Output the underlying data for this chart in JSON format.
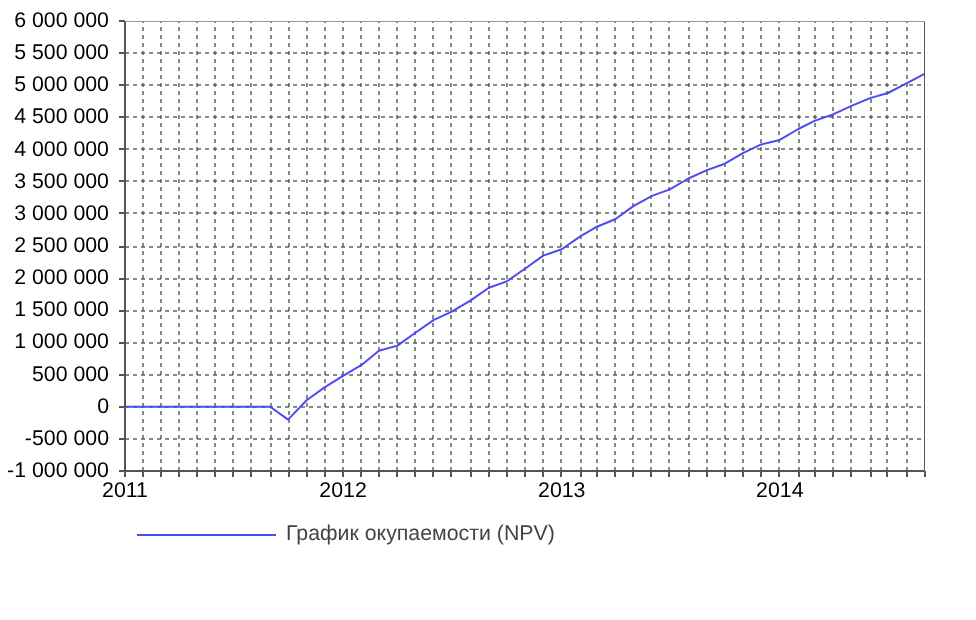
{
  "chart_data": {
    "type": "line",
    "x": [
      "2011-01",
      "2011-02",
      "2011-03",
      "2011-04",
      "2011-05",
      "2011-06",
      "2011-07",
      "2011-08",
      "2011-09",
      "2011-10",
      "2011-11",
      "2011-12",
      "2012-01",
      "2012-02",
      "2012-03",
      "2012-04",
      "2012-05",
      "2012-06",
      "2012-07",
      "2012-08",
      "2012-09",
      "2012-10",
      "2012-11",
      "2012-12",
      "2013-01",
      "2013-02",
      "2013-03",
      "2013-04",
      "2013-05",
      "2013-06",
      "2013-07",
      "2013-08",
      "2013-09",
      "2013-10",
      "2013-11",
      "2013-12",
      "2014-01",
      "2014-02",
      "2014-03",
      "2014-04",
      "2014-05",
      "2014-06",
      "2014-07",
      "2014-08",
      "2014-09"
    ],
    "series": [
      {
        "name": "График окупаемости (NPV)",
        "color": "#4b4bf0",
        "values": [
          0,
          0,
          0,
          0,
          0,
          0,
          0,
          0,
          0,
          -200000,
          100000,
          300000,
          480000,
          650000,
          870000,
          950000,
          1150000,
          1350000,
          1480000,
          1650000,
          1850000,
          1950000,
          2150000,
          2350000,
          2450000,
          2650000,
          2800000,
          2920000,
          3120000,
          3280000,
          3380000,
          3550000,
          3680000,
          3780000,
          3950000,
          4080000,
          4150000,
          4320000,
          4450000,
          4550000,
          4680000,
          4800000,
          4880000,
          5030000,
          5180000
        ]
      }
    ],
    "xlim": [
      "2011-01",
      "2014-09"
    ],
    "xticks": [
      {
        "value": "2011-01",
        "label": "2011"
      },
      {
        "value": "2011-02",
        "label": null
      },
      {
        "value": "2011-03",
        "label": null
      },
      {
        "value": "2011-04",
        "label": null
      },
      {
        "value": "2011-05",
        "label": null
      },
      {
        "value": "2011-06",
        "label": null
      },
      {
        "value": "2011-07",
        "label": null
      },
      {
        "value": "2011-08",
        "label": null
      },
      {
        "value": "2011-09",
        "label": null
      },
      {
        "value": "2011-10",
        "label": null
      },
      {
        "value": "2011-11",
        "label": null
      },
      {
        "value": "2011-12",
        "label": null
      },
      {
        "value": "2012-01",
        "label": "2012"
      },
      {
        "value": "2012-02",
        "label": null
      },
      {
        "value": "2012-03",
        "label": null
      },
      {
        "value": "2012-04",
        "label": null
      },
      {
        "value": "2012-05",
        "label": null
      },
      {
        "value": "2012-06",
        "label": null
      },
      {
        "value": "2012-07",
        "label": null
      },
      {
        "value": "2012-08",
        "label": null
      },
      {
        "value": "2012-09",
        "label": null
      },
      {
        "value": "2012-10",
        "label": null
      },
      {
        "value": "2012-11",
        "label": null
      },
      {
        "value": "2012-12",
        "label": null
      },
      {
        "value": "2013-01",
        "label": "2013"
      },
      {
        "value": "2013-02",
        "label": null
      },
      {
        "value": "2013-03",
        "label": null
      },
      {
        "value": "2013-04",
        "label": null
      },
      {
        "value": "2013-05",
        "label": null
      },
      {
        "value": "2013-06",
        "label": null
      },
      {
        "value": "2013-07",
        "label": null
      },
      {
        "value": "2013-08",
        "label": null
      },
      {
        "value": "2013-09",
        "label": null
      },
      {
        "value": "2013-10",
        "label": null
      },
      {
        "value": "2013-11",
        "label": null
      },
      {
        "value": "2013-12",
        "label": null
      },
      {
        "value": "2014-01",
        "label": "2014"
      },
      {
        "value": "2014-02",
        "label": null
      },
      {
        "value": "2014-03",
        "label": null
      },
      {
        "value": "2014-04",
        "label": null
      },
      {
        "value": "2014-05",
        "label": null
      },
      {
        "value": "2014-06",
        "label": null
      },
      {
        "value": "2014-07",
        "label": null
      },
      {
        "value": "2014-08",
        "label": null
      },
      {
        "value": "2014-09",
        "label": null
      }
    ],
    "ylim": [
      -1000000,
      6000000
    ],
    "yticks": [
      {
        "value": -1000000,
        "label": "-1 000 000"
      },
      {
        "value": -500000,
        "label": "-500 000"
      },
      {
        "value": 0,
        "label": "0"
      },
      {
        "value": 500000,
        "label": "500 000"
      },
      {
        "value": 1000000,
        "label": "1 000 000"
      },
      {
        "value": 1500000,
        "label": "1 500 000"
      },
      {
        "value": 2000000,
        "label": "2 000 000"
      },
      {
        "value": 2500000,
        "label": "2 500 000"
      },
      {
        "value": 3000000,
        "label": "3 000 000"
      },
      {
        "value": 3500000,
        "label": "3 500 000"
      },
      {
        "value": 4000000,
        "label": "4 000 000"
      },
      {
        "value": 4500000,
        "label": "4 500 000"
      },
      {
        "value": 5000000,
        "label": "5 000 000"
      },
      {
        "value": 5500000,
        "label": "5 500 000"
      },
      {
        "value": 6000000,
        "label": "6 000 000"
      }
    ],
    "grid": true,
    "legend": "bottom left",
    "marker": "none",
    "line_style": "solid"
  }
}
